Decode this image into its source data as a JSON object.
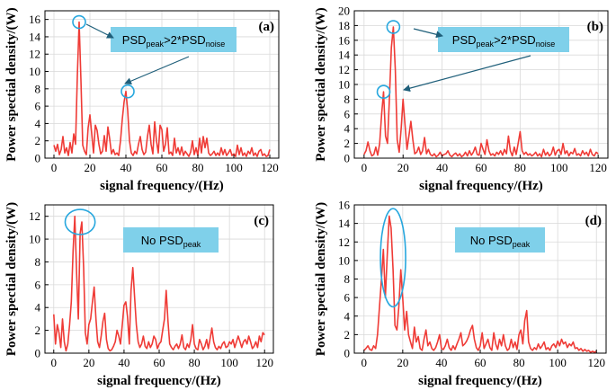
{
  "colors": {
    "line": "#ef3b36",
    "grid": "#d9d9d9",
    "box": "#7fd0ea",
    "marker": "#27a7de",
    "arrow": "#1f5f7a"
  },
  "chart_data": [
    {
      "type": "line",
      "panel": "(a)",
      "xlabel": "signal frequency/(Hz)",
      "ylabel": "Power spectial density/(W)",
      "xlim": [
        -5,
        125
      ],
      "ylim": [
        0,
        17
      ],
      "xticks": [
        0,
        20,
        40,
        60,
        80,
        100,
        120
      ],
      "yticks": [
        0,
        2,
        4,
        6,
        8,
        10,
        12,
        14,
        16
      ],
      "grid": true,
      "annotation": {
        "main": "PSD",
        "sub1": "peak",
        "mid": ">2*PSD",
        "sub2": "noise"
      },
      "markers": [
        [
          14,
          15.7
        ],
        [
          41,
          7.7
        ]
      ],
      "series": [
        {
          "x": [
            0,
            1,
            2,
            3,
            4,
            5,
            6,
            7,
            8,
            9,
            10,
            11,
            12,
            13,
            14,
            15,
            16,
            17,
            18,
            19,
            20,
            21,
            22,
            23,
            24,
            25,
            26,
            27,
            28,
            29,
            30,
            31,
            32,
            33,
            34,
            35,
            36,
            37,
            38,
            39,
            40,
            41,
            42,
            43,
            44,
            45,
            46,
            47,
            48,
            49,
            50,
            51,
            52,
            53,
            54,
            55,
            56,
            57,
            58,
            59,
            60,
            61,
            62,
            63,
            64,
            65,
            66,
            67,
            68,
            69,
            70,
            71,
            72,
            73,
            74,
            75,
            76,
            77,
            78,
            79,
            80,
            81,
            82,
            83,
            84,
            85,
            86,
            87,
            88,
            89,
            90,
            91,
            92,
            93,
            94,
            95,
            96,
            97,
            98,
            99,
            100,
            101,
            102,
            103,
            104,
            105,
            106,
            107,
            108,
            109,
            110,
            111,
            112,
            113,
            114,
            115,
            116,
            117,
            118,
            119,
            120
          ],
          "y": [
            1.5,
            0.8,
            1.6,
            0.4,
            1.0,
            2.5,
            0.6,
            1.2,
            0.3,
            1.8,
            0.6,
            2.8,
            1.6,
            9.5,
            15.7,
            9.0,
            1.5,
            0.8,
            0.4,
            3.5,
            5.0,
            2.8,
            0.6,
            3.8,
            3.2,
            1.6,
            0.5,
            0.8,
            2.6,
            0.8,
            3.6,
            2.2,
            0.5,
            1.0,
            0.4,
            0.6,
            0.3,
            2.0,
            4.5,
            6.5,
            7.7,
            5.5,
            2.0,
            0.6,
            0.3,
            0.8,
            0.5,
            1.6,
            2.5,
            1.0,
            0.4,
            0.7,
            2.5,
            3.8,
            1.6,
            0.5,
            4.2,
            2.0,
            0.6,
            3.8,
            3.3,
            0.8,
            1.6,
            3.5,
            0.5,
            0.7,
            0.3,
            2.3,
            0.6,
            1.2,
            0.4,
            1.3,
            0.3,
            0.8,
            0.5,
            0.2,
            0.7,
            2.0,
            0.4,
            1.2,
            0.3,
            2.3,
            0.6,
            2.5,
            1.2,
            2.3,
            0.6,
            0.3,
            0.5,
            0.8,
            0.3,
            0.6,
            0.3,
            1.2,
            0.4,
            1.0,
            0.3,
            0.6,
            1.0,
            0.3,
            0.5,
            0.2,
            1.5,
            0.4,
            1.2,
            0.3,
            0.6,
            0.2,
            0.8,
            0.5,
            1.2,
            0.3,
            0.6,
            0.2,
            0.8,
            1.0,
            0.3,
            0.5,
            0.2,
            0.3,
            1.0
          ]
        }
      ]
    },
    {
      "type": "line",
      "panel": "(b)",
      "xlabel": "signal frequency/(Hz)",
      "ylabel": "Power spectial density/(W)",
      "xlim": [
        -5,
        125
      ],
      "ylim": [
        0,
        20
      ],
      "xticks": [
        0,
        20,
        40,
        60,
        80,
        100,
        120
      ],
      "yticks": [
        0,
        2,
        4,
        6,
        8,
        10,
        12,
        14,
        16,
        18,
        20
      ],
      "grid": true,
      "annotation": {
        "main": "PSD",
        "sub1": "peak",
        "mid": ">2*PSD",
        "sub2": "noise"
      },
      "markers": [
        [
          10,
          9.0
        ],
        [
          15,
          17.8
        ]
      ],
      "series": [
        {
          "x": [
            0,
            1,
            2,
            3,
            4,
            5,
            6,
            7,
            8,
            9,
            10,
            11,
            12,
            13,
            14,
            15,
            16,
            17,
            18,
            19,
            20,
            21,
            22,
            23,
            24,
            25,
            26,
            27,
            28,
            29,
            30,
            31,
            32,
            33,
            34,
            35,
            36,
            37,
            38,
            39,
            40,
            41,
            42,
            43,
            44,
            45,
            46,
            47,
            48,
            49,
            50,
            51,
            52,
            53,
            54,
            55,
            56,
            57,
            58,
            59,
            60,
            61,
            62,
            63,
            64,
            65,
            66,
            67,
            68,
            69,
            70,
            71,
            72,
            73,
            74,
            75,
            76,
            77,
            78,
            79,
            80,
            81,
            82,
            83,
            84,
            85,
            86,
            87,
            88,
            89,
            90,
            91,
            92,
            93,
            94,
            95,
            96,
            97,
            98,
            99,
            100,
            101,
            102,
            103,
            104,
            105,
            106,
            107,
            108,
            109,
            110,
            111,
            112,
            113,
            114,
            115,
            116,
            117,
            118,
            119,
            120
          ],
          "y": [
            0.5,
            1.0,
            2.2,
            1.0,
            0.3,
            0.5,
            1.5,
            0.4,
            2.0,
            6.0,
            9.0,
            3.0,
            2.0,
            8.0,
            15.0,
            17.8,
            12.0,
            2.5,
            0.8,
            4.0,
            8.0,
            4.5,
            1.2,
            3.0,
            5.0,
            2.5,
            0.6,
            0.8,
            1.5,
            0.5,
            1.0,
            2.8,
            0.6,
            1.2,
            0.5,
            0.3,
            0.6,
            0.2,
            0.4,
            0.8,
            0.3,
            0.5,
            0.6,
            1.0,
            0.4,
            0.2,
            0.5,
            0.7,
            0.3,
            0.6,
            0.2,
            0.4,
            0.8,
            0.3,
            1.0,
            0.4,
            0.8,
            1.5,
            0.5,
            0.4,
            2.0,
            1.2,
            0.5,
            2.5,
            1.0,
            0.4,
            0.6,
            0.3,
            0.8,
            0.5,
            1.0,
            0.4,
            1.2,
            0.6,
            3.0,
            1.0,
            0.3,
            1.5,
            0.5,
            2.0,
            3.6,
            1.0,
            0.5,
            0.8,
            0.4,
            0.6,
            0.3,
            0.5,
            0.8,
            0.3,
            0.6,
            0.2,
            1.2,
            0.4,
            0.8,
            0.3,
            0.6,
            1.5,
            0.4,
            1.0,
            1.2,
            0.5,
            2.0,
            0.6,
            1.0,
            0.3,
            0.8,
            0.6,
            1.3,
            0.4,
            0.6,
            0.3,
            1.0,
            0.5,
            0.8,
            0.3,
            1.2,
            0.5,
            0.3,
            0.8,
            0.6
          ]
        }
      ]
    },
    {
      "type": "line",
      "panel": "(c)",
      "xlabel": "signal frequency/(Hz)",
      "ylabel": "Power spectial density/(W)",
      "xlim": [
        -5,
        125
      ],
      "ylim": [
        0,
        13
      ],
      "xticks": [
        0,
        20,
        40,
        60,
        80,
        100,
        120
      ],
      "yticks": [
        0,
        2,
        4,
        6,
        8,
        10,
        12
      ],
      "grid": true,
      "annotation": {
        "main": "No PSD",
        "sub1": "peak"
      },
      "ellipse": {
        "cx": 15,
        "cy": 11.5,
        "rx": 8.5,
        "ry": 1.1
      },
      "series": [
        {
          "x": [
            0,
            1,
            2,
            3,
            4,
            5,
            6,
            7,
            8,
            9,
            10,
            11,
            12,
            13,
            14,
            15,
            16,
            17,
            18,
            19,
            20,
            21,
            22,
            23,
            24,
            25,
            26,
            27,
            28,
            29,
            30,
            31,
            32,
            33,
            34,
            35,
            36,
            37,
            38,
            39,
            40,
            41,
            42,
            43,
            44,
            45,
            46,
            47,
            48,
            49,
            50,
            51,
            52,
            53,
            54,
            55,
            56,
            57,
            58,
            59,
            60,
            61,
            62,
            63,
            64,
            65,
            66,
            67,
            68,
            69,
            70,
            71,
            72,
            73,
            74,
            75,
            76,
            77,
            78,
            79,
            80,
            81,
            82,
            83,
            84,
            85,
            86,
            87,
            88,
            89,
            90,
            91,
            92,
            93,
            94,
            95,
            96,
            97,
            98,
            99,
            100,
            101,
            102,
            103,
            104,
            105,
            106,
            107,
            108,
            109,
            110,
            111,
            112,
            113,
            114,
            115,
            116,
            117,
            118,
            119,
            120
          ],
          "y": [
            3.4,
            0.8,
            2.5,
            1.8,
            0.5,
            3.0,
            1.0,
            0.2,
            0.8,
            2.5,
            4.5,
            9.0,
            12.0,
            7.0,
            3.0,
            10.5,
            11.5,
            7.5,
            1.8,
            0.8,
            2.5,
            3.0,
            4.5,
            5.8,
            3.0,
            1.0,
            0.5,
            1.5,
            2.8,
            3.5,
            1.2,
            0.4,
            0.2,
            0.3,
            0.6,
            1.0,
            2.0,
            1.5,
            0.8,
            2.5,
            4.2,
            4.5,
            3.2,
            0.8,
            5.5,
            7.5,
            5.0,
            2.5,
            1.0,
            0.5,
            0.8,
            1.5,
            0.6,
            0.4,
            1.0,
            0.5,
            0.8,
            1.5,
            1.2,
            0.4,
            0.8,
            1.0,
            2.0,
            3.0,
            5.5,
            2.8,
            0.8,
            0.5,
            0.3,
            0.6,
            0.8,
            0.4,
            0.8,
            1.6,
            0.5,
            0.3,
            0.8,
            0.5,
            1.2,
            2.5,
            0.8,
            0.4,
            0.3,
            1.2,
            0.8,
            0.3,
            0.6,
            1.2,
            0.4,
            1.3,
            2.2,
            1.0,
            0.5,
            0.3,
            0.6,
            0.4,
            0.8,
            1.0,
            0.5,
            0.6,
            1.0,
            0.8,
            1.2,
            0.5,
            1.0,
            1.5,
            1.0,
            0.5,
            1.0,
            1.2,
            0.8,
            1.5,
            1.0,
            0.4,
            0.6,
            1.0,
            0.5,
            1.5,
            1.0,
            1.8,
            1.6
          ]
        }
      ]
    },
    {
      "type": "line",
      "panel": "(d)",
      "xlabel": "signal frequency/(Hz)",
      "ylabel": "Power spectial density/(W)",
      "xlim": [
        -5,
        125
      ],
      "ylim": [
        0,
        16
      ],
      "xticks": [
        0,
        20,
        40,
        60,
        80,
        100,
        120
      ],
      "yticks": [
        0,
        2,
        4,
        6,
        8,
        10,
        12,
        14,
        16
      ],
      "grid": true,
      "annotation": {
        "main": "No PSD",
        "sub1": "peak"
      },
      "ellipse": {
        "cx": 15,
        "cy": 10.3,
        "rx": 6.5,
        "ry": 5.3
      },
      "series": [
        {
          "x": [
            0,
            1,
            2,
            3,
            4,
            5,
            6,
            7,
            8,
            9,
            10,
            11,
            12,
            13,
            14,
            15,
            16,
            17,
            18,
            19,
            20,
            21,
            22,
            23,
            24,
            25,
            26,
            27,
            28,
            29,
            30,
            31,
            32,
            33,
            34,
            35,
            36,
            37,
            38,
            39,
            40,
            41,
            42,
            43,
            44,
            45,
            46,
            47,
            48,
            49,
            50,
            51,
            52,
            53,
            54,
            55,
            56,
            57,
            58,
            59,
            60,
            61,
            62,
            63,
            64,
            65,
            66,
            67,
            68,
            69,
            70,
            71,
            72,
            73,
            74,
            75,
            76,
            77,
            78,
            79,
            80,
            81,
            82,
            83,
            84,
            85,
            86,
            87,
            88,
            89,
            90,
            91,
            92,
            93,
            94,
            95,
            96,
            97,
            98,
            99,
            100,
            101,
            102,
            103,
            104,
            105,
            106,
            107,
            108,
            109,
            110,
            111,
            112,
            113,
            114,
            115,
            116,
            117,
            118,
            119,
            120
          ],
          "y": [
            0.3,
            0.5,
            0.8,
            0.4,
            0.3,
            0.8,
            0.5,
            2.0,
            5.0,
            8.0,
            11.2,
            6.0,
            10.5,
            14.8,
            13.5,
            9.0,
            3.0,
            2.5,
            5.0,
            9.0,
            6.0,
            2.5,
            4.5,
            2.0,
            1.2,
            0.5,
            2.8,
            1.2,
            1.8,
            0.5,
            0.3,
            1.5,
            2.5,
            0.8,
            1.2,
            0.5,
            0.3,
            0.6,
            1.2,
            2.0,
            0.5,
            0.4,
            0.8,
            1.5,
            0.6,
            0.3,
            0.8,
            0.4,
            1.0,
            1.5,
            2.2,
            0.8,
            1.0,
            1.3,
            1.8,
            2.5,
            3.0,
            1.5,
            0.6,
            0.3,
            0.8,
            2.2,
            0.5,
            1.0,
            1.5,
            0.6,
            0.3,
            2.2,
            1.0,
            0.4,
            1.5,
            0.8,
            2.0,
            0.8,
            0.3,
            0.5,
            1.5,
            0.6,
            1.2,
            0.4,
            2.0,
            2.5,
            1.0,
            3.5,
            4.6,
            1.2,
            0.5,
            0.3,
            0.6,
            0.4,
            1.0,
            0.5,
            0.8,
            1.2,
            0.4,
            0.6,
            0.3,
            0.8,
            1.0,
            0.6,
            1.3,
            0.8,
            1.5,
            1.0,
            1.2,
            0.6,
            1.0,
            0.8,
            1.2,
            0.5,
            0.6,
            0.3,
            0.5,
            0.2,
            0.4,
            0.2,
            0.3,
            0.1,
            0.2,
            0.1,
            0.2
          ]
        }
      ]
    }
  ]
}
